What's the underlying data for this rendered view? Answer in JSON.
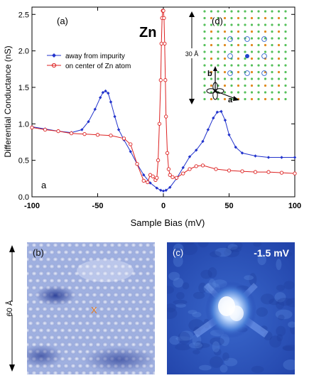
{
  "chart_data": {
    "type": "line",
    "panel_label": "(a)",
    "corner_label": "a",
    "element_label": "Zn",
    "xlabel": "Sample Bias (mV)",
    "ylabel": "Differential Conductance (nS)",
    "xlim": [
      -100,
      100
    ],
    "ylim": [
      0,
      2.6
    ],
    "x_ticks": [
      "-100",
      "-50",
      "0",
      "50",
      "100"
    ],
    "y_ticks": [
      "0.0",
      "0.5",
      "1.0",
      "1.5",
      "2.0",
      "2.5"
    ],
    "legend_position": "upper-left",
    "series": [
      {
        "name": "away from impurity",
        "color": "#2233cc",
        "marker": "filled-diamond",
        "x": [
          -100,
          -90,
          -80,
          -70,
          -62,
          -57,
          -52,
          -48,
          -46,
          -44,
          -42,
          -40,
          -37,
          -34,
          -30,
          -25,
          -20,
          -15,
          -10,
          -5,
          -2,
          0,
          2,
          5,
          10,
          15,
          20,
          25,
          30,
          34,
          38,
          41,
          44,
          47,
          50,
          55,
          60,
          70,
          80,
          90,
          100
        ],
        "y": [
          0.96,
          0.93,
          0.9,
          0.88,
          0.92,
          1.03,
          1.2,
          1.36,
          1.43,
          1.45,
          1.42,
          1.3,
          1.1,
          0.92,
          0.78,
          0.62,
          0.45,
          0.3,
          0.19,
          0.12,
          0.09,
          0.08,
          0.09,
          0.13,
          0.25,
          0.4,
          0.55,
          0.64,
          0.76,
          0.92,
          1.08,
          1.16,
          1.17,
          1.05,
          0.85,
          0.68,
          0.6,
          0.56,
          0.54,
          0.54,
          0.54
        ]
      },
      {
        "name": "on center of Zn atom",
        "color": "#dd2222",
        "marker": "open-circle",
        "x": [
          -100,
          -90,
          -80,
          -70,
          -60,
          -50,
          -40,
          -30,
          -25,
          -20,
          -15,
          -12,
          -10,
          -8,
          -6,
          -5,
          -4,
          -3,
          -2,
          -1.5,
          -1,
          -0.5,
          0,
          0.5,
          1,
          1.5,
          2,
          3,
          4,
          5,
          7,
          10,
          15,
          20,
          25,
          30,
          40,
          50,
          60,
          70,
          80,
          90,
          100
        ],
        "y": [
          0.95,
          0.92,
          0.9,
          0.87,
          0.86,
          0.85,
          0.84,
          0.8,
          0.72,
          0.45,
          0.22,
          0.2,
          0.3,
          0.28,
          0.23,
          0.26,
          0.5,
          1.0,
          1.6,
          2.1,
          2.45,
          2.55,
          2.55,
          2.45,
          2.1,
          1.6,
          1.1,
          0.6,
          0.38,
          0.3,
          0.27,
          0.26,
          0.32,
          0.38,
          0.42,
          0.43,
          0.38,
          0.36,
          0.35,
          0.34,
          0.34,
          0.33,
          0.32
        ]
      }
    ]
  },
  "inset_d": {
    "label": "(d)",
    "scale_text": "30 Å",
    "axis_b": "b",
    "axis_a": "a"
  },
  "panel_b": {
    "label": "(b)",
    "scale_text": "60 Å",
    "marker": "X"
  },
  "panel_c": {
    "label": "(c)",
    "bias": "-1.5 mV"
  }
}
